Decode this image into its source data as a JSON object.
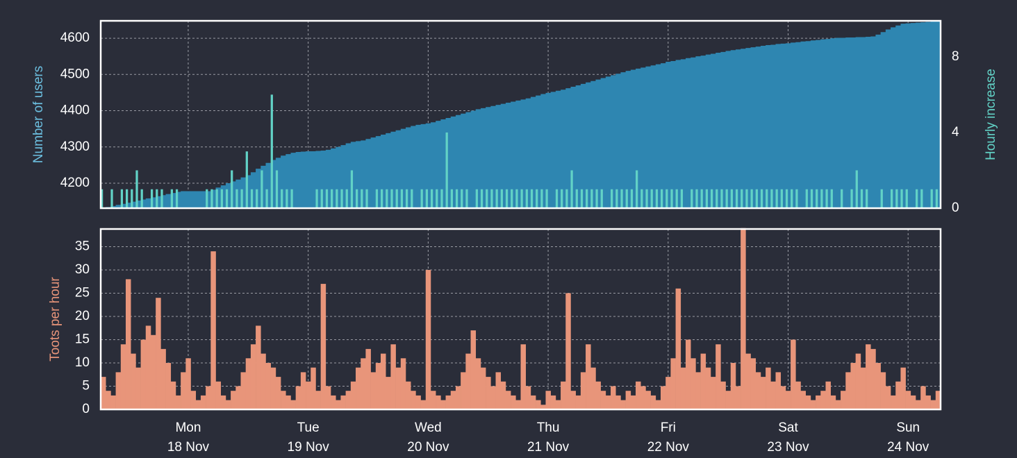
{
  "chart_data": [
    {
      "type": "area",
      "ylabel": "Number of users",
      "y2label": "Hourly increase",
      "xlim": [
        0,
        168
      ],
      "ylim": [
        4131,
        4648
      ],
      "yticks": [
        4200,
        4300,
        4400,
        4500,
        4600
      ],
      "y2lim": [
        0,
        9.9
      ],
      "y2ticks": [
        0,
        4,
        8
      ],
      "grid": true,
      "x": [
        0,
        1,
        2,
        3,
        4,
        5,
        6,
        7,
        8,
        9,
        10,
        11,
        12,
        13,
        14,
        15,
        16,
        17,
        18,
        19,
        20,
        21,
        22,
        23,
        24,
        25,
        26,
        27,
        28,
        29,
        30,
        31,
        32,
        33,
        34,
        35,
        36,
        37,
        38,
        39,
        40,
        41,
        42,
        43,
        44,
        45,
        46,
        47,
        48,
        49,
        50,
        51,
        52,
        53,
        54,
        55,
        56,
        57,
        58,
        59,
        60,
        61,
        62,
        63,
        64,
        65,
        66,
        67,
        68,
        69,
        70,
        71,
        72,
        73,
        74,
        75,
        76,
        77,
        78,
        79,
        80,
        81,
        82,
        83,
        84,
        85,
        86,
        87,
        88,
        89,
        90,
        91,
        92,
        93,
        94,
        95,
        96,
        97,
        98,
        99,
        100,
        101,
        102,
        103,
        104,
        105,
        106,
        107,
        108,
        109,
        110,
        111,
        112,
        113,
        114,
        115,
        116,
        117,
        118,
        119,
        120,
        121,
        122,
        123,
        124,
        125,
        126,
        127,
        128,
        129,
        130,
        131,
        132,
        133,
        134,
        135,
        136,
        137,
        138,
        139,
        140,
        141,
        142,
        143,
        144,
        145,
        146,
        147,
        148,
        149,
        150,
        151,
        152,
        153,
        154,
        155,
        156,
        157,
        158,
        159,
        160,
        161,
        162,
        163,
        164,
        165,
        166,
        167
      ],
      "series": [
        {
          "name": "Number of users",
          "type": "area",
          "color": "#2e86b1",
          "values": [
            4132,
            4134,
            4137,
            4140,
            4143,
            4146,
            4149,
            4152,
            4155,
            4158,
            4161,
            4164,
            4167,
            4170,
            4173,
            4176,
            4178,
            4178,
            4178,
            4178,
            4178,
            4178,
            4182,
            4188,
            4194,
            4200,
            4205,
            4210,
            4216,
            4222,
            4230,
            4240,
            4248,
            4256,
            4264,
            4270,
            4276,
            4280,
            4284,
            4286,
            4287,
            4288,
            4288,
            4289,
            4290,
            4292,
            4296,
            4300,
            4305,
            4310,
            4314,
            4316,
            4318,
            4322,
            4326,
            4330,
            4334,
            4338,
            4342,
            4346,
            4350,
            4354,
            4358,
            4361,
            4363,
            4365,
            4368,
            4372,
            4376,
            4380,
            4384,
            4388,
            4392,
            4396,
            4400,
            4404,
            4407,
            4410,
            4413,
            4416,
            4419,
            4422,
            4425,
            4428,
            4431,
            4434,
            4438,
            4442,
            4446,
            4449,
            4452,
            4455,
            4458,
            4462,
            4466,
            4470,
            4474,
            4478,
            4482,
            4486,
            4490,
            4494,
            4498,
            4502,
            4506,
            4510,
            4513,
            4516,
            4519,
            4522,
            4525,
            4528,
            4531,
            4535,
            4537,
            4540,
            4542,
            4545,
            4547,
            4550,
            4552,
            4555,
            4557,
            4560,
            4562,
            4565,
            4567,
            4569,
            4571,
            4573,
            4575,
            4577,
            4579,
            4581,
            4582,
            4584,
            4585,
            4586,
            4588,
            4589,
            4591,
            4592,
            4594,
            4595,
            4597,
            4598,
            4600,
            4601,
            4601,
            4602,
            4602,
            4603,
            4603,
            4604,
            4605,
            4610,
            4617,
            4624,
            4630,
            4635,
            4640,
            4641,
            4642,
            4643,
            4644,
            4645,
            4646,
            4647
          ]
        },
        {
          "name": "Hourly increase",
          "type": "bar",
          "axis": "y2",
          "color": "#62d2c6",
          "values": [
            1,
            0,
            1,
            0,
            1,
            1,
            1,
            2,
            1,
            0,
            1,
            1,
            1,
            0,
            1,
            1,
            0,
            0,
            0,
            0,
            0,
            1,
            1,
            1,
            1,
            1,
            2,
            1,
            1,
            3,
            1,
            1,
            2,
            1,
            6,
            2,
            1,
            1,
            1,
            0,
            0,
            0,
            0,
            1,
            1,
            1,
            1,
            1,
            1,
            1,
            2,
            1,
            1,
            1,
            0,
            1,
            1,
            1,
            1,
            1,
            1,
            1,
            1,
            0,
            1,
            1,
            1,
            1,
            1,
            4,
            1,
            1,
            1,
            1,
            0,
            1,
            1,
            1,
            1,
            1,
            1,
            1,
            1,
            1,
            1,
            1,
            1,
            1,
            1,
            1,
            0,
            1,
            1,
            1,
            2,
            1,
            1,
            1,
            1,
            1,
            1,
            0,
            1,
            1,
            1,
            1,
            1,
            2,
            1,
            1,
            1,
            1,
            1,
            1,
            1,
            1,
            1,
            0,
            1,
            1,
            1,
            1,
            1,
            1,
            1,
            1,
            1,
            1,
            1,
            1,
            1,
            1,
            1,
            1,
            1,
            1,
            1,
            1,
            1,
            1,
            0,
            1,
            1,
            1,
            1,
            1,
            1,
            0,
            1,
            0,
            1,
            2,
            1,
            1,
            0,
            0,
            1,
            0,
            1,
            1,
            1,
            1,
            0,
            1,
            1,
            0,
            1,
            1
          ]
        }
      ]
    },
    {
      "type": "bar",
      "ylabel": "Toots per hour",
      "xlim": [
        0,
        168
      ],
      "ylim": [
        0,
        38.8
      ],
      "yticks": [
        0,
        5,
        10,
        15,
        20,
        25,
        30,
        35
      ],
      "grid": true,
      "xticks": [
        {
          "value": 17.5,
          "label": [
            "Mon",
            "18 Nov"
          ]
        },
        {
          "value": 41.5,
          "label": [
            "Tue",
            "19 Nov"
          ]
        },
        {
          "value": 65.5,
          "label": [
            "Wed",
            "20 Nov"
          ]
        },
        {
          "value": 89.5,
          "label": [
            "Thu",
            "21 Nov"
          ]
        },
        {
          "value": 113.5,
          "label": [
            "Fri",
            "22 Nov"
          ]
        },
        {
          "value": 137.5,
          "label": [
            "Sat",
            "23 Nov"
          ]
        },
        {
          "value": 161.5,
          "label": [
            "Sun",
            "24 Nov"
          ]
        }
      ],
      "x": [
        0,
        1,
        2,
        3,
        4,
        5,
        6,
        7,
        8,
        9,
        10,
        11,
        12,
        13,
        14,
        15,
        16,
        17,
        18,
        19,
        20,
        21,
        22,
        23,
        24,
        25,
        26,
        27,
        28,
        29,
        30,
        31,
        32,
        33,
        34,
        35,
        36,
        37,
        38,
        39,
        40,
        41,
        42,
        43,
        44,
        45,
        46,
        47,
        48,
        49,
        50,
        51,
        52,
        53,
        54,
        55,
        56,
        57,
        58,
        59,
        60,
        61,
        62,
        63,
        64,
        65,
        66,
        67,
        68,
        69,
        70,
        71,
        72,
        73,
        74,
        75,
        76,
        77,
        78,
        79,
        80,
        81,
        82,
        83,
        84,
        85,
        86,
        87,
        88,
        89,
        90,
        91,
        92,
        93,
        94,
        95,
        96,
        97,
        98,
        99,
        100,
        101,
        102,
        103,
        104,
        105,
        106,
        107,
        108,
        109,
        110,
        111,
        112,
        113,
        114,
        115,
        116,
        117,
        118,
        119,
        120,
        121,
        122,
        123,
        124,
        125,
        126,
        127,
        128,
        129,
        130,
        131,
        132,
        133,
        134,
        135,
        136,
        137,
        138,
        139,
        140,
        141,
        142,
        143,
        144,
        145,
        146,
        147,
        148,
        149,
        150,
        151,
        152,
        153,
        154,
        155,
        156,
        157,
        158,
        159,
        160,
        161,
        162,
        163,
        164,
        165,
        166,
        167
      ],
      "color": "#e8957a",
      "values": [
        7,
        4,
        3,
        8,
        14,
        28,
        12,
        9,
        15,
        18,
        16,
        24,
        13,
        10,
        6,
        3,
        8,
        11,
        4,
        2,
        3,
        5,
        34,
        6,
        3,
        2,
        4,
        5,
        8,
        11,
        14,
        18,
        12,
        10,
        9,
        7,
        4,
        3,
        2,
        5,
        8,
        6,
        9,
        4,
        27,
        5,
        3,
        2,
        3,
        4,
        6,
        9,
        11,
        13,
        8,
        10,
        12,
        7,
        14,
        9,
        11,
        6,
        4,
        3,
        2,
        30,
        4,
        3,
        2,
        3,
        4,
        5,
        8,
        12,
        17,
        11,
        9,
        7,
        5,
        8,
        6,
        4,
        3,
        2,
        14,
        5,
        3,
        2,
        1,
        4,
        3,
        2,
        6,
        25,
        4,
        3,
        8,
        14,
        9,
        6,
        4,
        3,
        5,
        3,
        2,
        4,
        3,
        6,
        5,
        4,
        3,
        2,
        5,
        7,
        11,
        26,
        9,
        15,
        11,
        8,
        12,
        9,
        7,
        14,
        6,
        4,
        10,
        5,
        39,
        12,
        11,
        8,
        7,
        9,
        6,
        8,
        5,
        4,
        15,
        6,
        4,
        3,
        2,
        3,
        4,
        6,
        3,
        2,
        4,
        8,
        10,
        12,
        9,
        14,
        13,
        10,
        8,
        5,
        3,
        6,
        9,
        4,
        3,
        2,
        5,
        3,
        2,
        4
      ]
    }
  ]
}
